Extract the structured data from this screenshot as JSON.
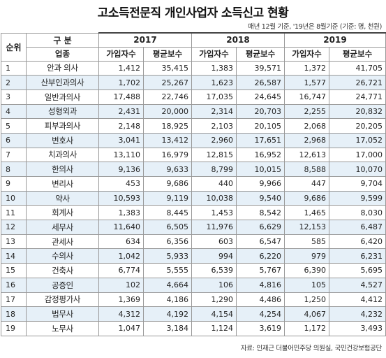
{
  "title": "고소득전문직 개인사업자 소득신고 현황",
  "subtitle": "매년 12월 기준, '19년은 8월기준 (기준: 명, 천원)",
  "source": "자료: 인재근 더불어민주당 의원실, 국민건강보험공단",
  "header": {
    "rank": "순위",
    "category": "구 분",
    "job": "업종",
    "years": [
      "2017",
      "2018",
      "2019"
    ],
    "sub_cols": [
      "가입자수",
      "평균보수"
    ]
  },
  "rows": [
    {
      "rank": "1",
      "job": "안과 의사",
      "v": [
        "1,412",
        "35,415",
        "1,383",
        "39,571",
        "1,372",
        "41,705"
      ]
    },
    {
      "rank": "2",
      "job": "산부인과의사",
      "v": [
        "1,702",
        "25,267",
        "1,623",
        "26,587",
        "1,577",
        "26,721"
      ]
    },
    {
      "rank": "3",
      "job": "일반과의사",
      "v": [
        "17,488",
        "22,746",
        "17,035",
        "24,645",
        "16,747",
        "24,771"
      ]
    },
    {
      "rank": "4",
      "job": "성형외과",
      "v": [
        "2,431",
        "20,000",
        "2,314",
        "20,703",
        "2,255",
        "20,832"
      ]
    },
    {
      "rank": "5",
      "job": "피부과의사",
      "v": [
        "2,148",
        "18,925",
        "2,103",
        "20,105",
        "2,068",
        "20,205"
      ]
    },
    {
      "rank": "6",
      "job": "변호사",
      "v": [
        "3,041",
        "13,412",
        "2,960",
        "17,651",
        "2,968",
        "17,052"
      ]
    },
    {
      "rank": "7",
      "job": "치과의사",
      "v": [
        "13,110",
        "16,979",
        "12,815",
        "16,952",
        "12,613",
        "17,000"
      ]
    },
    {
      "rank": "8",
      "job": "한의사",
      "v": [
        "9,136",
        "9,633",
        "8,799",
        "10,015",
        "8,588",
        "10,070"
      ]
    },
    {
      "rank": "9",
      "job": "변리사",
      "v": [
        "453",
        "9,686",
        "440",
        "9,966",
        "447",
        "9,704"
      ]
    },
    {
      "rank": "10",
      "job": "약사",
      "v": [
        "10,593",
        "9,119",
        "10,038",
        "9,540",
        "9,686",
        "9,599"
      ]
    },
    {
      "rank": "11",
      "job": "회계사",
      "v": [
        "1,383",
        "8,445",
        "1,453",
        "8,542",
        "1,465",
        "8,030"
      ]
    },
    {
      "rank": "12",
      "job": "세무사",
      "v": [
        "11,640",
        "6,505",
        "11,976",
        "6,629",
        "12,153",
        "6,487"
      ]
    },
    {
      "rank": "13",
      "job": "관세사",
      "v": [
        "634",
        "6,356",
        "603",
        "6,547",
        "585",
        "6,420"
      ]
    },
    {
      "rank": "14",
      "job": "수의사",
      "v": [
        "1,042",
        "5,933",
        "994",
        "6,220",
        "979",
        "6,231"
      ]
    },
    {
      "rank": "15",
      "job": "건축사",
      "v": [
        "6,774",
        "5,555",
        "6,539",
        "5,767",
        "6,390",
        "5,695"
      ]
    },
    {
      "rank": "16",
      "job": "공증인",
      "v": [
        "102",
        "4,664",
        "106",
        "4,816",
        "105",
        "4,527"
      ]
    },
    {
      "rank": "17",
      "job": "감정평가사",
      "v": [
        "1,369",
        "4,186",
        "1,290",
        "4,486",
        "1,250",
        "4,412"
      ]
    },
    {
      "rank": "18",
      "job": "법무사",
      "v": [
        "4,312",
        "4,192",
        "4,154",
        "4,254",
        "4,067",
        "4,232"
      ]
    },
    {
      "rank": "19",
      "job": "노무사",
      "v": [
        "1,047",
        "3,184",
        "1,124",
        "3,619",
        "1,172",
        "3,493"
      ]
    }
  ]
}
